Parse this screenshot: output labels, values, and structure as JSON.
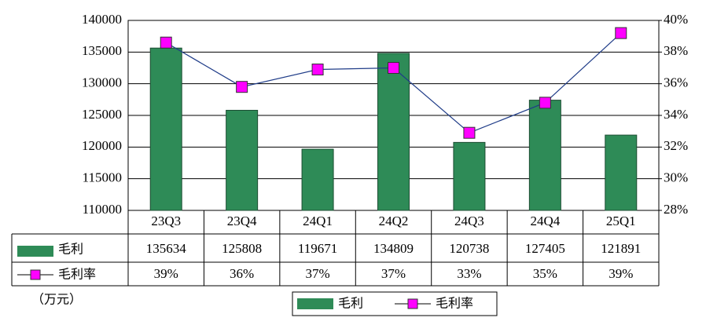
{
  "chart_data": {
    "type": "bar",
    "unit_note": "（万元）",
    "categories": [
      "23Q3",
      "23Q4",
      "24Q1",
      "24Q2",
      "24Q3",
      "24Q4",
      "25Q1"
    ],
    "series": [
      {
        "name": "毛利",
        "color": "#2e8b57",
        "values": [
          135634,
          125808,
          119671,
          134809,
          120738,
          127405,
          121891
        ]
      },
      {
        "name": "毛利率",
        "type": "line",
        "axis": "y2",
        "color": "#ff00ff",
        "values": [
          38.6,
          35.8,
          36.9,
          37.0,
          32.9,
          34.8,
          39.2
        ],
        "value_labels": [
          "39%",
          "36%",
          "37%",
          "37%",
          "33%",
          "35%",
          "39%"
        ]
      }
    ],
    "ylim": [
      110000,
      140000
    ],
    "yticks": [
      110000,
      115000,
      120000,
      125000,
      130000,
      135000,
      140000
    ],
    "y2lim": [
      28,
      40
    ],
    "y2ticks": [
      {
        "value": 28,
        "label": "28%"
      },
      {
        "value": 30,
        "label": "30%"
      },
      {
        "value": 32,
        "label": "32%"
      },
      {
        "value": 34,
        "label": "34%"
      },
      {
        "value": 36,
        "label": "36%"
      },
      {
        "value": 38,
        "label": "38%"
      },
      {
        "value": 40,
        "label": "40%"
      }
    ],
    "grid": true
  }
}
